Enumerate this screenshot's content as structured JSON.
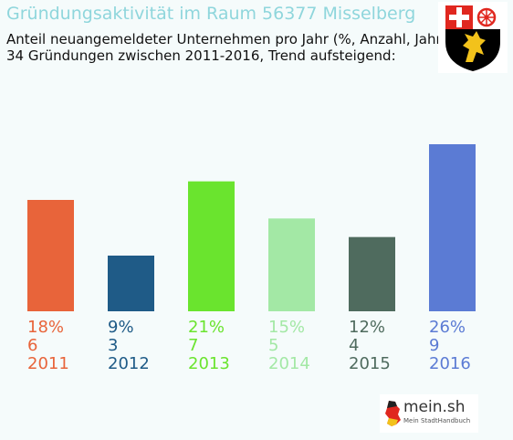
{
  "header": {
    "title": "Gründungsaktivität im Raum 56377 Misselberg",
    "subtitle_line1": "Anteil neuangemeldeter Unternehmen pro Jahr (%, Anzahl, Jahr)",
    "subtitle_line2": "34 Gründungen zwischen 2011-2016, Trend aufsteigend:"
  },
  "crest": {
    "icon": "rhineland-palatinate-coat-of-arms-icon"
  },
  "logo": {
    "main": "mein.sh",
    "sub": "Mein StadtHandbuch",
    "icon": "germany-map-icon"
  },
  "chart_data": {
    "type": "bar",
    "categories": [
      "2011",
      "2012",
      "2013",
      "2014",
      "2015",
      "2016"
    ],
    "percent_labels": [
      "18%",
      "9%",
      "21%",
      "15%",
      "12%",
      "26%"
    ],
    "count_labels": [
      "6",
      "3",
      "7",
      "5",
      "4",
      "9"
    ],
    "values": [
      6,
      3,
      7,
      5,
      4,
      9
    ],
    "colors": [
      "#e8643a",
      "#1f5b87",
      "#6ae42e",
      "#a3e8a5",
      "#4f6b5e",
      "#5b7bd4"
    ],
    "title": "Gründungsaktivität im Raum 56377 Misselberg",
    "grid": false,
    "legend": "none"
  }
}
